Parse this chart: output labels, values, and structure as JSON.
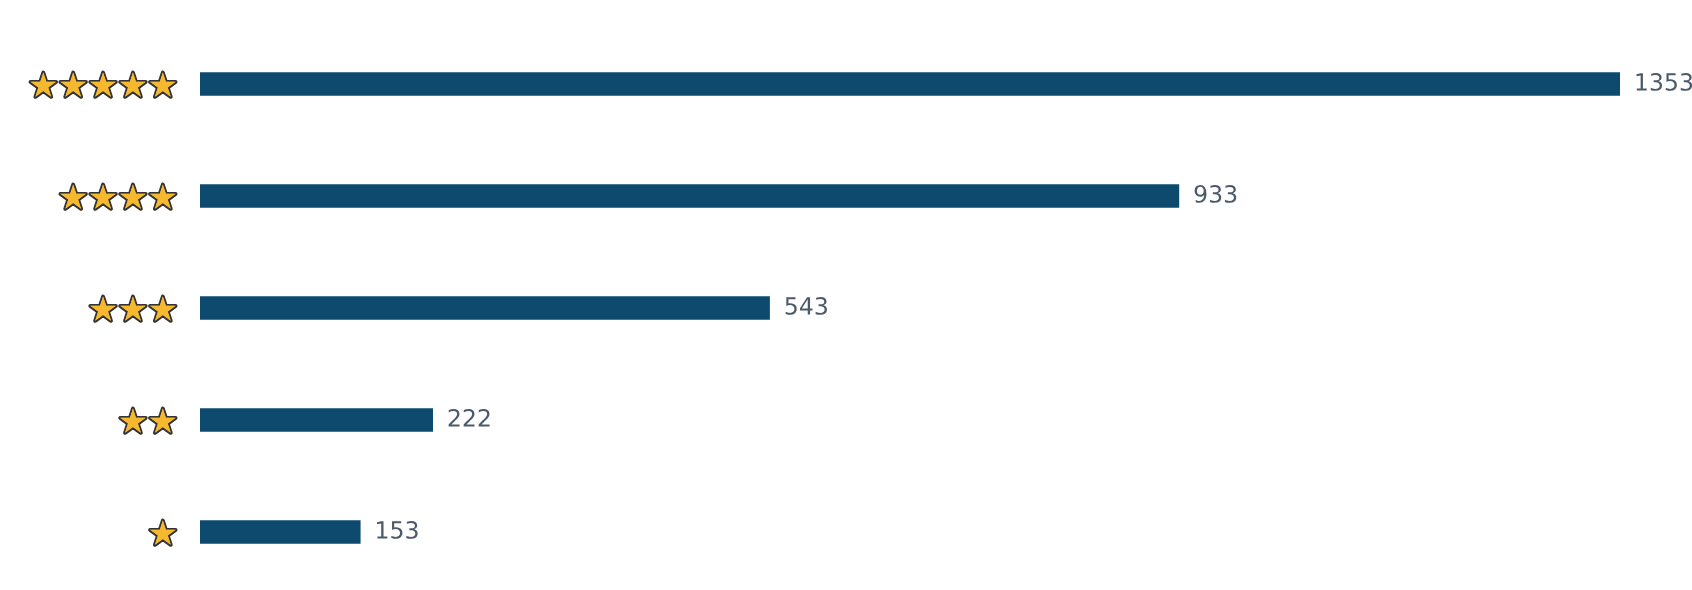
{
  "chart_data": {
    "type": "bar",
    "orientation": "horizontal",
    "categories": [
      "★★★★★",
      "★★★★",
      "★★★",
      "★★",
      "★"
    ],
    "values": [
      1353,
      933,
      543,
      222,
      153
    ],
    "color": "#0e4a6e",
    "data_labels": true,
    "grid": false,
    "legend": false
  }
}
